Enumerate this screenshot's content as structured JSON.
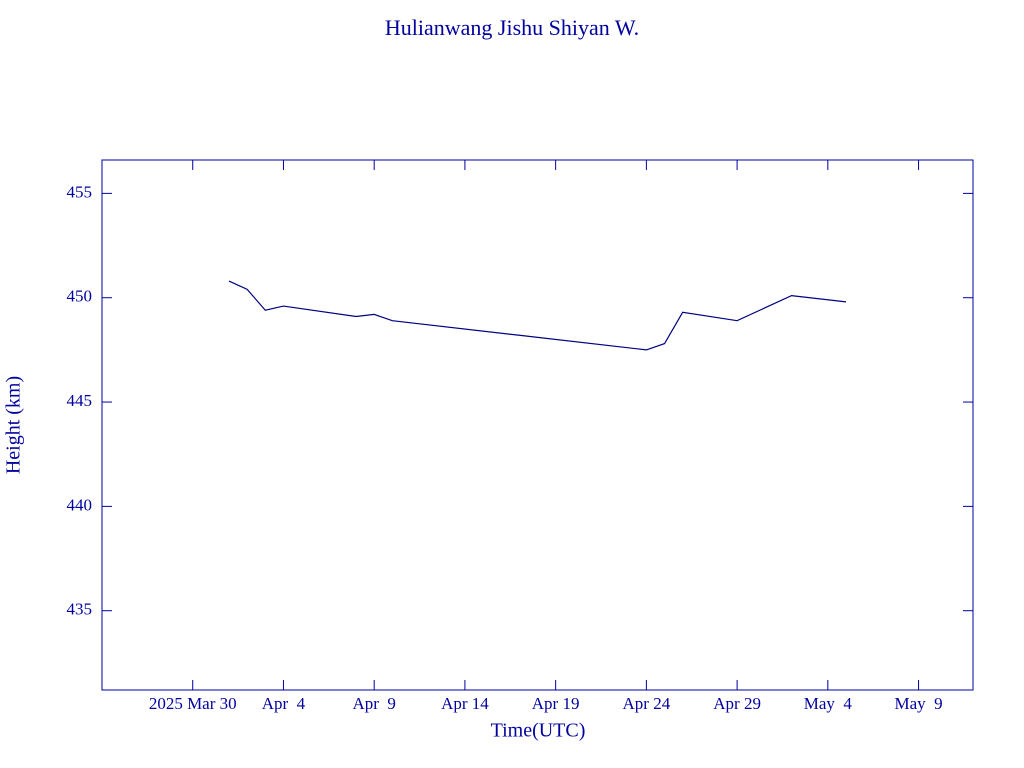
{
  "chart_data": {
    "type": "line",
    "title": "Hulianwang Jishu Shiyan W.",
    "x_label": "Time(UTC)",
    "y_label": "Height (km)",
    "x": [
      "2025-04-01",
      "2025-04-02",
      "2025-04-03",
      "2025-04-04",
      "2025-04-08",
      "2025-04-09",
      "2025-04-10",
      "2025-04-17",
      "2025-04-24",
      "2025-04-25",
      "2025-04-26",
      "2025-04-29",
      "2025-05-02",
      "2025-05-05"
    ],
    "series": [
      {
        "name": "Height",
        "color": "#000080",
        "values": [
          450.8,
          450.4,
          449.4,
          449.6,
          449.1,
          449.2,
          448.9,
          448.2,
          447.5,
          447.8,
          449.3,
          448.9,
          450.1,
          449.8
        ]
      }
    ],
    "xlim": [
      "2025-03-25",
      "2025-05-12"
    ],
    "xticks": [
      {
        "value": "2025-03-30",
        "label": "2025 Mar 30"
      },
      {
        "value": "2025-04-04",
        "label": "Apr  4"
      },
      {
        "value": "2025-04-09",
        "label": "Apr  9"
      },
      {
        "value": "2025-04-14",
        "label": "Apr 14"
      },
      {
        "value": "2025-04-19",
        "label": "Apr 19"
      },
      {
        "value": "2025-04-24",
        "label": "Apr 24"
      },
      {
        "value": "2025-04-29",
        "label": "Apr 29"
      },
      {
        "value": "2025-05-04",
        "label": "May  4"
      },
      {
        "value": "2025-05-09",
        "label": "May  9"
      }
    ],
    "ylim": [
      431.2,
      456.6
    ],
    "yticks": [
      435,
      440,
      445,
      450,
      455
    ],
    "grid": false
  }
}
